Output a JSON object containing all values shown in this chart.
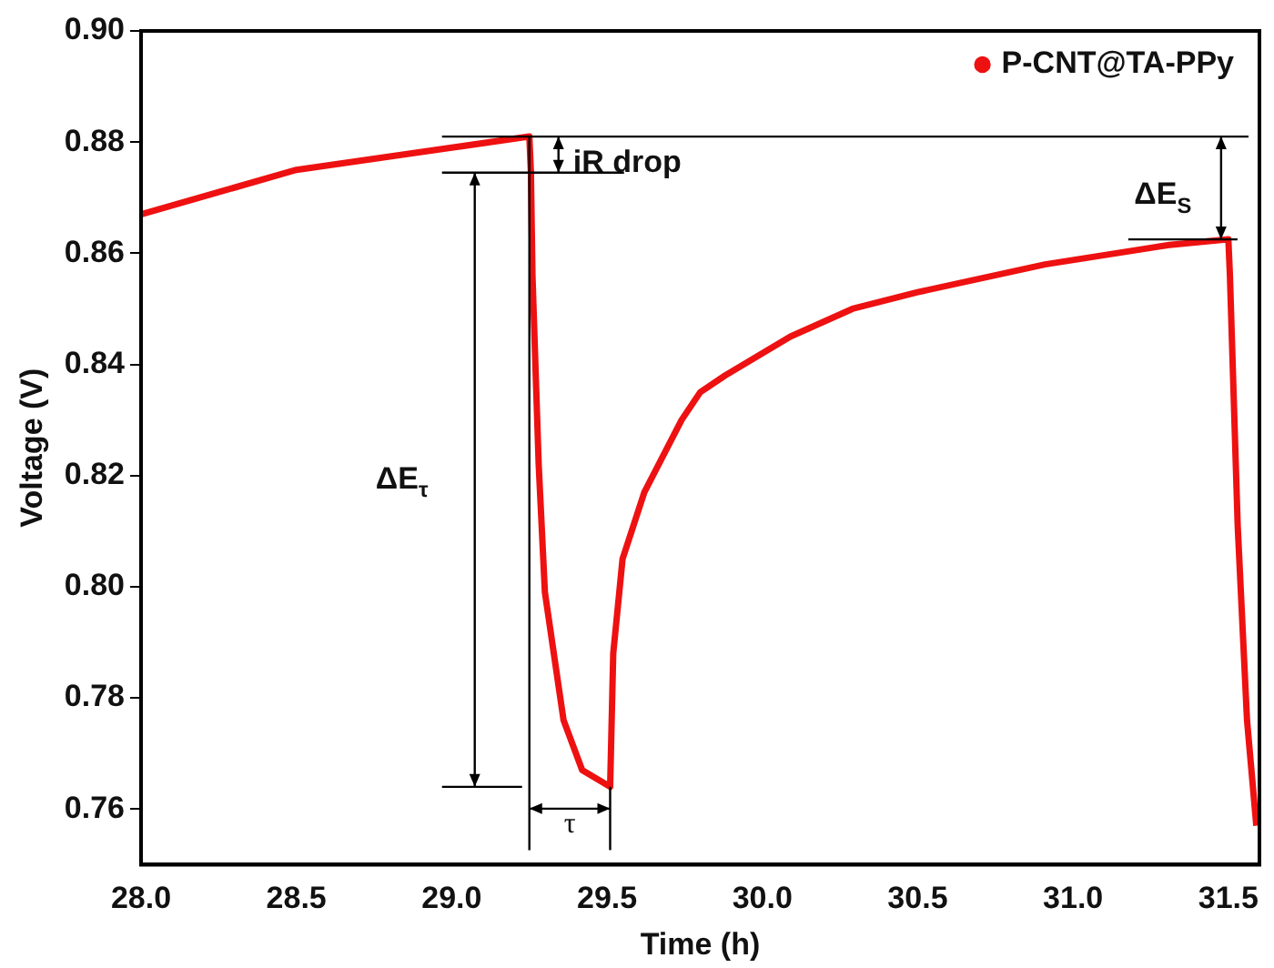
{
  "chart_data": {
    "type": "line",
    "xlabel": "Time (h)",
    "ylabel": "Voltage (V)",
    "x": [
      28.0,
      28.25,
      28.5,
      28.75,
      29.0,
      29.25,
      29.255,
      29.26,
      29.28,
      29.3,
      29.36,
      29.42,
      29.51,
      29.52,
      29.55,
      29.62,
      29.74,
      29.8,
      29.88,
      30.09,
      30.29,
      30.5,
      30.91,
      31.31,
      31.5,
      31.505,
      31.53,
      31.56,
      31.59
    ],
    "series": [
      {
        "name": "P-CNT@TA-PPy",
        "color": "#ee1111",
        "values": [
          0.867,
          0.871,
          0.875,
          0.877,
          0.879,
          0.881,
          0.8745,
          0.856,
          0.822,
          0.799,
          0.776,
          0.767,
          0.764,
          0.788,
          0.805,
          0.817,
          0.83,
          0.835,
          0.838,
          0.845,
          0.85,
          0.853,
          0.858,
          0.8615,
          0.8625,
          0.856,
          0.811,
          0.776,
          0.757
        ]
      }
    ],
    "xlim": [
      28.0,
      31.6
    ],
    "xticks": [
      {
        "value": 28,
        "label": "28.0"
      },
      28.5,
      {
        "value": 29,
        "label": "29.0"
      },
      29.5,
      {
        "value": 30,
        "label": "30.0"
      },
      30.5,
      {
        "value": 31,
        "label": "31.0"
      },
      31.5
    ],
    "ylim": [
      0.75,
      0.9
    ],
    "yticks": [
      0.76,
      0.78,
      {
        "value": 0.8,
        "label": "0.80"
      },
      0.82,
      0.84,
      0.86,
      0.88,
      {
        "value": 0.9,
        "label": "0.90"
      }
    ],
    "grid": false,
    "legend": "top right",
    "marker": "none",
    "line_style": "solid",
    "ref_lines": [
      {
        "axis": "y",
        "value": 0.881
      },
      {
        "axis": "y",
        "value": 0.8625
      },
      {
        "axis": "x",
        "value": 29.25
      }
    ],
    "annotations": [
      "iR drop",
      "ΔE$_{τ}$",
      {
        "text": "ΔE$_{S}$",
        "x": 31.5,
        "y": 0.8625
      },
      "τ"
    ]
  }
}
